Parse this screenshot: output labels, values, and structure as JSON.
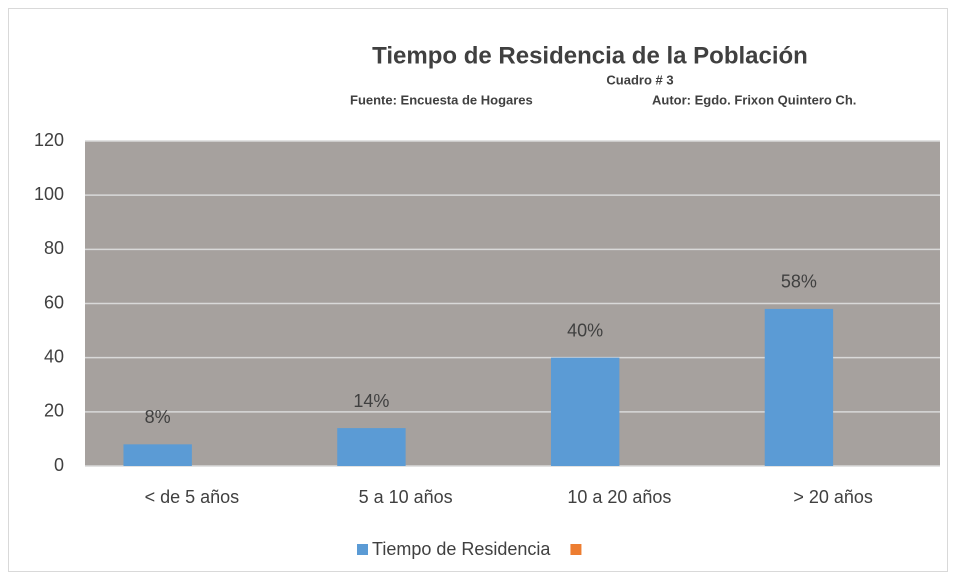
{
  "chart_data": {
    "type": "bar",
    "title": "Tiempo de Residencia de la Población",
    "subtitle": "Cuadro # 3",
    "source": "Fuente: Encuesta de Hogares",
    "author": "Autor: Egdo. Frixon Quintero Ch.",
    "categories": [
      "< de 5 años",
      "5 a 10 años",
      "10 a 20 años",
      "> 20 años"
    ],
    "series": [
      {
        "name": "Tiempo de Residencia",
        "color": "#5b9bd5",
        "values": [
          8,
          14,
          40,
          58
        ],
        "value_labels": [
          "8%",
          "14%",
          "40%",
          "58%"
        ]
      },
      {
        "color": "#ed7d31",
        "values": [
          null,
          null,
          null,
          null
        ]
      }
    ],
    "ylim": [
      0,
      120
    ],
    "yticks": [
      0,
      20,
      40,
      60,
      80,
      100,
      120
    ],
    "grid": true,
    "legend": "bottom"
  }
}
